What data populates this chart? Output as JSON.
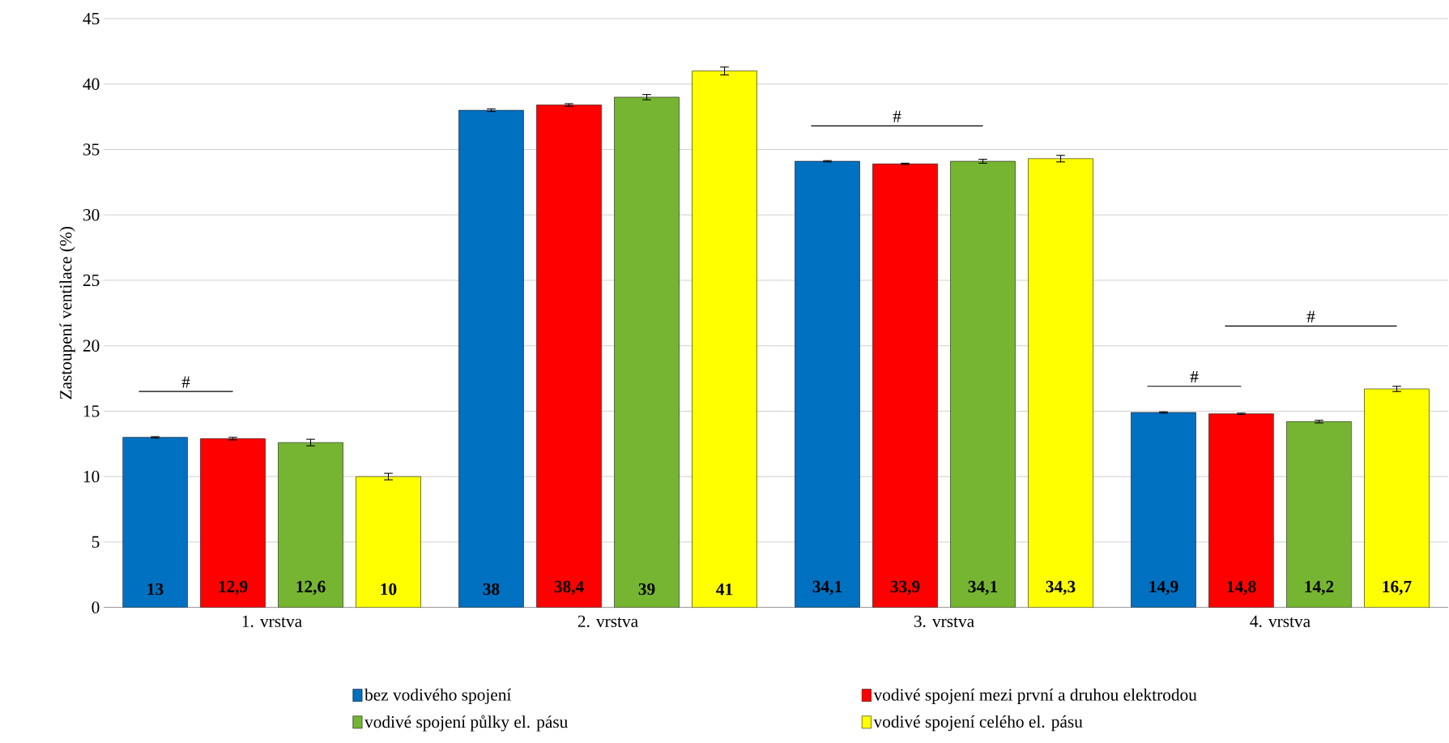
{
  "chart_data": {
    "type": "bar",
    "ylabel": "Zastoupení ventilace (%)",
    "categories": [
      "1. vrstva",
      "2. vrstva",
      "3. vrstva",
      "4. vrstva"
    ],
    "series": [
      {
        "name": "bez vodivého spojení",
        "color": "#0070c0",
        "values": [
          13,
          38,
          34.1,
          14.9
        ],
        "value_labels": [
          "13",
          "38",
          "34,1",
          "14,9"
        ],
        "errors": [
          0.05,
          0.1,
          0.05,
          0.05
        ]
      },
      {
        "name": "vodivé spojení mezi první a druhou elektrodou",
        "color": "#ff0000",
        "values": [
          12.9,
          38.4,
          33.9,
          14.8
        ],
        "value_labels": [
          "12,9",
          "38,4",
          "33,9",
          "14,8"
        ],
        "errors": [
          0.1,
          0.1,
          0.05,
          0.05
        ]
      },
      {
        "name": "vodivé spojení půlky el. pásu",
        "color": "#76b531",
        "values": [
          12.6,
          39,
          34.1,
          14.2
        ],
        "value_labels": [
          "12,6",
          "39",
          "34,1",
          "14,2"
        ],
        "errors": [
          0.25,
          0.2,
          0.15,
          0.1
        ]
      },
      {
        "name": "vodivé spojení celého el. pásu",
        "color": "#ffff00",
        "values": [
          10,
          41,
          34.3,
          16.7
        ],
        "value_labels": [
          "10",
          "41",
          "34,3",
          "16,7"
        ],
        "errors": [
          0.25,
          0.3,
          0.25,
          0.2
        ]
      }
    ],
    "ylim": [
      0,
      45
    ],
    "yticks": [
      0,
      5,
      10,
      15,
      20,
      25,
      30,
      35,
      40,
      45
    ],
    "grid": "y",
    "legend": "bottom",
    "annotations": [
      "#",
      "#",
      "#",
      "#"
    ]
  }
}
